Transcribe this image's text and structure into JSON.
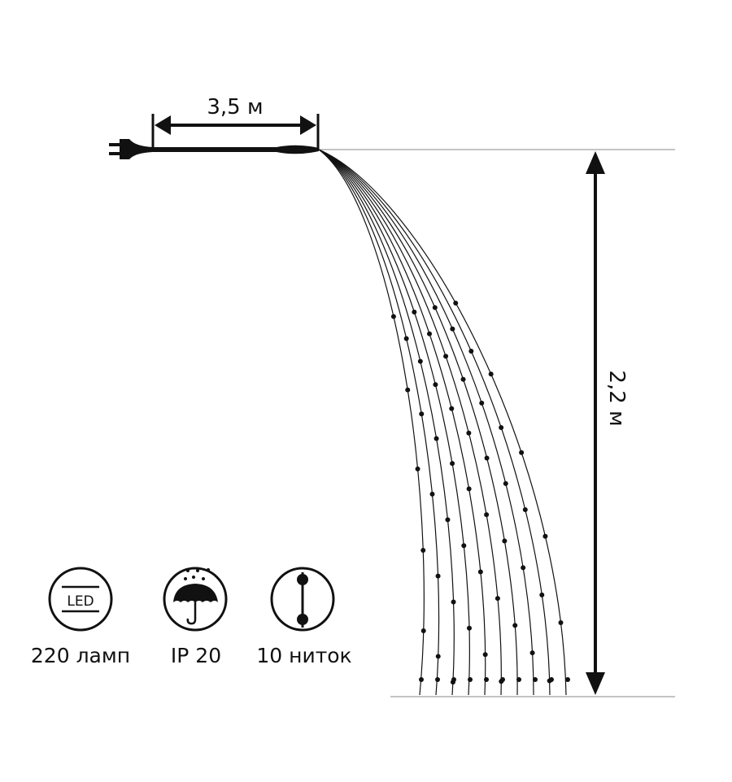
{
  "dimensions": {
    "cable_length": "3,5 м",
    "curtain_height": "2,2 м"
  },
  "features": [
    {
      "icon": "led-icon",
      "icon_text": "LED",
      "label": "220 ламп"
    },
    {
      "icon": "umbrella-rain-icon",
      "label": "IP 20"
    },
    {
      "icon": "strand-icon",
      "label": "10 ниток"
    }
  ],
  "strand_count": 10,
  "colors": {
    "line": "#111111",
    "guide": "#888888"
  }
}
